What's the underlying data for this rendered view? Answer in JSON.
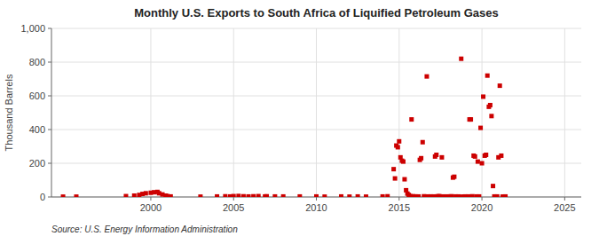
{
  "chart_data": {
    "type": "scatter",
    "title": "Monthly U.S. Exports to South Africa of Liquified Petroleum Gases",
    "ylabel": "Thousand Barrels",
    "annotations": [
      "Source: U.S. Energy Information Administration"
    ],
    "color": "#cc0000",
    "marker": "square",
    "grid": true,
    "xlim": [
      1994,
      2026
    ],
    "ylim": [
      0,
      1000
    ],
    "xticks": [
      2000,
      2005,
      2010,
      2015,
      2020,
      2025
    ],
    "yticks": [
      0,
      200,
      400,
      600,
      800,
      {
        "value": 1000,
        "label": "1,000"
      }
    ],
    "x": [
      1994.7,
      1995.5,
      1998.5,
      1999.0,
      1999.3,
      1999.5,
      1999.7,
      2000.0,
      2000.2,
      2000.4,
      2000.5,
      2000.7,
      2000.9,
      2001.0,
      2001.2,
      2003.0,
      2004.0,
      2004.5,
      2004.8,
      2005.0,
      2005.3,
      2005.6,
      2005.9,
      2006.2,
      2006.5,
      2006.9,
      2007.0,
      2007.5,
      2008.0,
      2009.0,
      2010.0,
      2010.5,
      2011.5,
      2012.0,
      2012.5,
      2013.0,
      2014.0,
      2014.3,
      2014.67,
      2014.75,
      2014.83,
      2014.92,
      2015.0,
      2015.08,
      2015.17,
      2015.25,
      2015.33,
      2015.42,
      2015.5,
      2015.58,
      2015.67,
      2015.75,
      2015.83,
      2015.92,
      2016.0,
      2016.08,
      2016.17,
      2016.25,
      2016.33,
      2016.42,
      2016.5,
      2016.58,
      2016.67,
      2016.75,
      2016.83,
      2016.92,
      2017.0,
      2017.08,
      2017.17,
      2017.25,
      2017.33,
      2017.42,
      2017.5,
      2017.58,
      2017.67,
      2017.75,
      2017.83,
      2017.92,
      2018.0,
      2018.08,
      2018.17,
      2018.25,
      2018.33,
      2018.42,
      2018.5,
      2018.58,
      2018.75,
      2018.83,
      2018.92,
      2019.0,
      2019.08,
      2019.17,
      2019.25,
      2019.33,
      2019.42,
      2019.5,
      2019.58,
      2019.67,
      2019.75,
      2019.83,
      2019.92,
      2020.0,
      2020.08,
      2020.17,
      2020.25,
      2020.33,
      2020.42,
      2020.5,
      2020.58,
      2020.67,
      2020.75,
      2020.83,
      2020.92,
      2021.0,
      2021.08,
      2021.17,
      2021.25,
      2021.33,
      2021.42
    ],
    "values": [
      2,
      2,
      5,
      8,
      12,
      18,
      22,
      25,
      28,
      30,
      22,
      15,
      8,
      5,
      3,
      2,
      3,
      4,
      3,
      5,
      6,
      4,
      3,
      4,
      5,
      3,
      4,
      3,
      3,
      3,
      3,
      2,
      3,
      2,
      3,
      2,
      3,
      4,
      165,
      110,
      305,
      295,
      330,
      235,
      215,
      210,
      105,
      40,
      20,
      12,
      5,
      460,
      4,
      3,
      3,
      2,
      3,
      220,
      230,
      325,
      4,
      2,
      715,
      3,
      2,
      3,
      2,
      3,
      240,
      250,
      4,
      5,
      2,
      235,
      3,
      2,
      2,
      3,
      2,
      3,
      4,
      115,
      120,
      3,
      2,
      3,
      820,
      2,
      2,
      3,
      2,
      3,
      460,
      460,
      4,
      245,
      240,
      3,
      210,
      3,
      410,
      200,
      595,
      245,
      250,
      720,
      535,
      545,
      480,
      65,
      3,
      2,
      3,
      235,
      660,
      245,
      2,
      2,
      3
    ]
  }
}
